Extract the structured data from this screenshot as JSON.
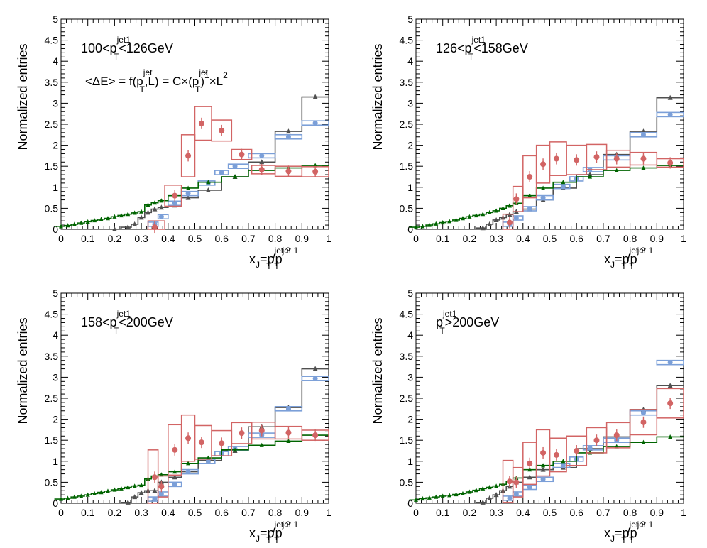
{
  "figure": {
    "ylabel": "Normalized entries",
    "xlabel": {
      "main": "x",
      "sub_J": "J",
      "eq": "=p",
      "sup1": "jet 2",
      "sub_T": "T",
      "slash": "/p",
      "sup2": "jet 1"
    },
    "xticks": [
      "0",
      "0.1",
      "0.2",
      "0.3",
      "0.4",
      "0.5",
      "0.6",
      "0.7",
      "0.8",
      "0.9",
      "1"
    ],
    "yticks": [
      "0",
      "0.5",
      "1",
      "1.5",
      "2",
      "2.5",
      "3",
      "3.5",
      "4",
      "4.5",
      "5"
    ],
    "colors": {
      "black": "#505050",
      "blue": "#7b9fd8",
      "red": "#d26464",
      "green": "#006400",
      "frame": "#000000"
    }
  },
  "chart_data": [
    {
      "type": "line",
      "panel": "top-left",
      "title": {
        "pre": "100<p",
        "sup": "jet1",
        "sub": "T",
        "post": "<126GeV"
      },
      "formula": {
        "a": "<ΔE> = f(p",
        "a_sup": "jet",
        "a_sub": "T",
        "b": ",L) = C×(p",
        "b_sup": "jet",
        "b_sub": "T",
        "c": ")",
        "c_sup": "1",
        "d": "×L",
        "d_sup": "2"
      },
      "xlim": [
        0,
        1
      ],
      "ylim": [
        0,
        5
      ],
      "black": [
        [
          0.2,
          0.0
        ],
        [
          0.25,
          0.05
        ],
        [
          0.275,
          0.12
        ],
        [
          0.3,
          0.28
        ],
        [
          0.325,
          0.4
        ],
        [
          0.35,
          0.48
        ],
        [
          0.375,
          0.52
        ],
        [
          0.425,
          0.57
        ],
        [
          0.475,
          0.75
        ],
        [
          0.55,
          0.93
        ],
        [
          0.65,
          1.25
        ],
        [
          0.75,
          1.6
        ],
        [
          0.85,
          2.33
        ],
        [
          0.95,
          3.15
        ]
      ],
      "blue": [
        [
          0.35,
          0.12
        ],
        [
          0.375,
          0.3
        ],
        [
          0.425,
          0.62
        ],
        [
          0.475,
          0.85
        ],
        [
          0.55,
          1.1
        ],
        [
          0.6,
          1.35
        ],
        [
          0.65,
          1.5
        ],
        [
          0.75,
          1.75
        ],
        [
          0.85,
          2.2
        ],
        [
          0.95,
          2.53
        ]
      ],
      "red": [
        [
          0.35,
          0.05
        ],
        [
          0.425,
          0.8
        ],
        [
          0.475,
          1.75
        ],
        [
          0.525,
          2.52
        ],
        [
          0.6,
          2.35
        ],
        [
          0.675,
          1.78
        ],
        [
          0.75,
          1.42
        ],
        [
          0.85,
          1.38
        ],
        [
          0.95,
          1.37
        ]
      ],
      "red_box_h": [
        0.15,
        0.25,
        0.5,
        0.4,
        0.25,
        0.12,
        0.1,
        0.12,
        0.12
      ],
      "green": [
        [
          0.0,
          0.07
        ],
        [
          0.025,
          0.09
        ],
        [
          0.05,
          0.12
        ],
        [
          0.075,
          0.15
        ],
        [
          0.1,
          0.18
        ],
        [
          0.125,
          0.21
        ],
        [
          0.15,
          0.24
        ],
        [
          0.175,
          0.26
        ],
        [
          0.2,
          0.3
        ],
        [
          0.225,
          0.33
        ],
        [
          0.25,
          0.36
        ],
        [
          0.275,
          0.39
        ],
        [
          0.3,
          0.42
        ],
        [
          0.325,
          0.58
        ],
        [
          0.35,
          0.63
        ],
        [
          0.375,
          0.68
        ],
        [
          0.425,
          0.8
        ],
        [
          0.475,
          0.98
        ],
        [
          0.55,
          1.12
        ],
        [
          0.65,
          1.25
        ],
        [
          0.75,
          1.4
        ],
        [
          0.85,
          1.46
        ],
        [
          0.95,
          1.52
        ]
      ]
    },
    {
      "type": "line",
      "panel": "top-right",
      "title": {
        "pre": "126<p",
        "sup": "jet1",
        "sub": "T",
        "post": "<158GeV"
      },
      "xlim": [
        0,
        1
      ],
      "ylim": [
        0,
        5
      ],
      "black": [
        [
          0.25,
          0.03
        ],
        [
          0.275,
          0.12
        ],
        [
          0.3,
          0.22
        ],
        [
          0.325,
          0.28
        ],
        [
          0.35,
          0.35
        ],
        [
          0.375,
          0.42
        ],
        [
          0.425,
          0.48
        ],
        [
          0.475,
          0.7
        ],
        [
          0.55,
          0.98
        ],
        [
          0.65,
          1.3
        ],
        [
          0.75,
          1.78
        ],
        [
          0.85,
          2.33
        ],
        [
          0.95,
          3.13
        ]
      ],
      "blue": [
        [
          0.35,
          0.12
        ],
        [
          0.375,
          0.27
        ],
        [
          0.425,
          0.49
        ],
        [
          0.475,
          0.75
        ],
        [
          0.55,
          1.02
        ],
        [
          0.6,
          1.2
        ],
        [
          0.65,
          1.42
        ],
        [
          0.75,
          1.7
        ],
        [
          0.85,
          2.25
        ],
        [
          0.95,
          2.73
        ]
      ],
      "red": [
        [
          0.35,
          0.16
        ],
        [
          0.375,
          0.72
        ],
        [
          0.425,
          1.25
        ],
        [
          0.475,
          1.55
        ],
        [
          0.525,
          1.68
        ],
        [
          0.6,
          1.65
        ],
        [
          0.675,
          1.72
        ],
        [
          0.75,
          1.68
        ],
        [
          0.85,
          1.68
        ],
        [
          0.95,
          1.58
        ]
      ],
      "red_box_h": [
        0.2,
        0.3,
        0.5,
        0.45,
        0.4,
        0.35,
        0.3,
        0.2,
        0.15,
        0.1
      ],
      "green": [
        [
          0.0,
          0.05
        ],
        [
          0.025,
          0.07
        ],
        [
          0.05,
          0.1
        ],
        [
          0.075,
          0.13
        ],
        [
          0.1,
          0.16
        ],
        [
          0.125,
          0.19
        ],
        [
          0.15,
          0.22
        ],
        [
          0.175,
          0.26
        ],
        [
          0.2,
          0.3
        ],
        [
          0.225,
          0.33
        ],
        [
          0.25,
          0.36
        ],
        [
          0.275,
          0.4
        ],
        [
          0.3,
          0.44
        ],
        [
          0.325,
          0.5
        ],
        [
          0.35,
          0.56
        ],
        [
          0.375,
          0.62
        ],
        [
          0.425,
          0.8
        ],
        [
          0.475,
          0.98
        ],
        [
          0.55,
          1.12
        ],
        [
          0.65,
          1.25
        ],
        [
          0.75,
          1.4
        ],
        [
          0.85,
          1.46
        ],
        [
          0.95,
          1.52
        ]
      ]
    },
    {
      "type": "line",
      "panel": "bottom-left",
      "title": {
        "pre": "158<p",
        "sup": "jet1",
        "sub": "T",
        "post": "<200GeV"
      },
      "xlim": [
        0,
        1
      ],
      "ylim": [
        0,
        5
      ],
      "black": [
        [
          0.25,
          0.02
        ],
        [
          0.275,
          0.15
        ],
        [
          0.3,
          0.25
        ],
        [
          0.325,
          0.3
        ],
        [
          0.35,
          0.3
        ],
        [
          0.375,
          0.5
        ],
        [
          0.425,
          0.62
        ],
        [
          0.475,
          0.75
        ],
        [
          0.55,
          1.02
        ],
        [
          0.65,
          1.25
        ],
        [
          0.75,
          1.82
        ],
        [
          0.85,
          2.28
        ],
        [
          0.95,
          3.2
        ]
      ],
      "blue": [
        [
          0.35,
          0.1
        ],
        [
          0.375,
          0.22
        ],
        [
          0.425,
          0.45
        ],
        [
          0.475,
          0.75
        ],
        [
          0.55,
          1.0
        ],
        [
          0.6,
          1.18
        ],
        [
          0.65,
          1.3
        ],
        [
          0.75,
          1.62
        ],
        [
          0.85,
          2.25
        ],
        [
          0.95,
          2.97
        ]
      ],
      "red": [
        [
          0.35,
          0.62
        ],
        [
          0.375,
          0.4
        ],
        [
          0.425,
          1.27
        ],
        [
          0.475,
          1.55
        ],
        [
          0.525,
          1.45
        ],
        [
          0.6,
          1.43
        ],
        [
          0.675,
          1.67
        ],
        [
          0.75,
          1.73
        ],
        [
          0.85,
          1.68
        ],
        [
          0.95,
          1.62
        ]
      ],
      "red_box_h": [
        0.65,
        0.25,
        0.6,
        0.55,
        0.4,
        0.3,
        0.25,
        0.2,
        0.15,
        0.12
      ],
      "green": [
        [
          0.0,
          0.1
        ],
        [
          0.025,
          0.12
        ],
        [
          0.05,
          0.15
        ],
        [
          0.075,
          0.17
        ],
        [
          0.1,
          0.2
        ],
        [
          0.125,
          0.23
        ],
        [
          0.15,
          0.26
        ],
        [
          0.175,
          0.29
        ],
        [
          0.2,
          0.32
        ],
        [
          0.225,
          0.35
        ],
        [
          0.25,
          0.38
        ],
        [
          0.275,
          0.41
        ],
        [
          0.3,
          0.43
        ],
        [
          0.325,
          0.58
        ],
        [
          0.35,
          0.65
        ],
        [
          0.375,
          0.68
        ],
        [
          0.425,
          0.75
        ],
        [
          0.475,
          0.95
        ],
        [
          0.55,
          1.08
        ],
        [
          0.65,
          1.27
        ],
        [
          0.75,
          1.38
        ],
        [
          0.85,
          1.48
        ],
        [
          0.95,
          1.62
        ]
      ]
    },
    {
      "type": "line",
      "panel": "bottom-right",
      "title": {
        "pre": "p",
        "sup": "jet1",
        "sub": "T",
        "post": ">200GeV"
      },
      "xlim": [
        0,
        1
      ],
      "ylim": [
        0,
        5
      ],
      "black": [
        [
          0.25,
          0.02
        ],
        [
          0.275,
          0.12
        ],
        [
          0.3,
          0.2
        ],
        [
          0.325,
          0.3
        ],
        [
          0.35,
          0.4
        ],
        [
          0.375,
          0.5
        ],
        [
          0.425,
          0.62
        ],
        [
          0.475,
          0.8
        ],
        [
          0.55,
          0.85
        ],
        [
          0.65,
          1.3
        ],
        [
          0.75,
          1.58
        ],
        [
          0.85,
          2.23
        ],
        [
          0.95,
          2.8
        ]
      ],
      "blue": [
        [
          0.35,
          0.12
        ],
        [
          0.375,
          0.22
        ],
        [
          0.425,
          0.38
        ],
        [
          0.475,
          0.57
        ],
        [
          0.55,
          0.9
        ],
        [
          0.6,
          1.05
        ],
        [
          0.65,
          1.32
        ],
        [
          0.75,
          1.5
        ],
        [
          0.85,
          2.15
        ],
        [
          0.95,
          3.35
        ]
      ],
      "red": [
        [
          0.35,
          0.52
        ],
        [
          0.375,
          0.5
        ],
        [
          0.425,
          0.95
        ],
        [
          0.475,
          1.2
        ],
        [
          0.525,
          1.15
        ],
        [
          0.6,
          1.25
        ],
        [
          0.675,
          1.5
        ],
        [
          0.75,
          1.62
        ],
        [
          0.85,
          1.93
        ],
        [
          0.95,
          2.38
        ]
      ],
      "red_box_h": [
        0.5,
        0.35,
        0.5,
        0.55,
        0.4,
        0.35,
        0.3,
        0.3,
        0.3,
        0.35
      ],
      "green": [
        [
          0.0,
          0.08
        ],
        [
          0.025,
          0.11
        ],
        [
          0.05,
          0.13
        ],
        [
          0.075,
          0.15
        ],
        [
          0.1,
          0.17
        ],
        [
          0.125,
          0.19
        ],
        [
          0.15,
          0.21
        ],
        [
          0.175,
          0.23
        ],
        [
          0.2,
          0.27
        ],
        [
          0.225,
          0.31
        ],
        [
          0.25,
          0.35
        ],
        [
          0.275,
          0.38
        ],
        [
          0.3,
          0.41
        ],
        [
          0.325,
          0.45
        ],
        [
          0.35,
          0.52
        ],
        [
          0.375,
          0.6
        ],
        [
          0.425,
          0.8
        ],
        [
          0.475,
          0.9
        ],
        [
          0.55,
          1.0
        ],
        [
          0.65,
          1.2
        ],
        [
          0.75,
          1.35
        ],
        [
          0.85,
          1.45
        ],
        [
          0.95,
          1.58
        ]
      ]
    }
  ]
}
